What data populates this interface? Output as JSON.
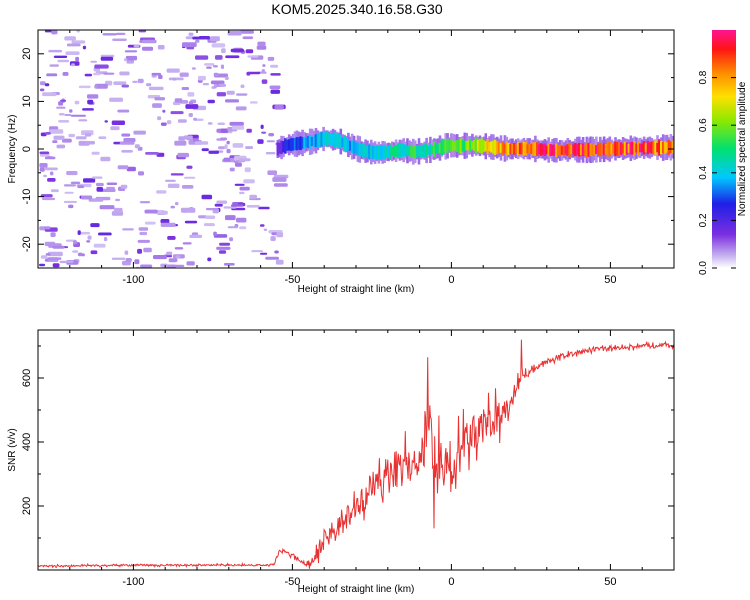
{
  "title": "KOM5.2025.340.16.58.G30",
  "chart_data": [
    {
      "type": "heatmap",
      "name": "spectrogram",
      "xlabel": "Height of straight line (km)",
      "ylabel": "Frequency (Hz)",
      "xlim": [
        -130,
        70
      ],
      "ylim": [
        -25,
        25
      ],
      "xticks": [
        -100,
        -50,
        0,
        50
      ],
      "yticks": [
        -20,
        -10,
        0,
        10,
        20
      ],
      "noise_region_x": [
        -130,
        -55
      ],
      "ridge": {
        "x": [
          -55,
          -52,
          -48,
          -44,
          -40,
          -36,
          -32,
          -28,
          -24,
          -20,
          -16,
          -12,
          -8,
          -4,
          -1,
          2,
          6,
          10,
          14,
          18,
          22,
          26,
          30,
          34,
          38,
          42,
          46,
          50,
          54,
          58,
          62,
          66,
          70
        ],
        "freq": [
          0.0,
          0.8,
          1.2,
          1.6,
          2.2,
          1.8,
          0.6,
          -0.4,
          -0.8,
          -0.6,
          -0.2,
          -0.6,
          -0.3,
          0.2,
          0.8,
          0.6,
          0.8,
          0.6,
          0.3,
          0.0,
          0.1,
          0.0,
          -0.2,
          -0.3,
          -0.1,
          -0.2,
          -0.1,
          0.0,
          0.1,
          0.2,
          0.3,
          0.3,
          0.4
        ],
        "amplitude": [
          0.1,
          0.3,
          0.32,
          0.35,
          0.4,
          0.38,
          0.36,
          0.4,
          0.42,
          0.44,
          0.45,
          0.5,
          0.48,
          0.5,
          0.55,
          0.55,
          0.6,
          0.7,
          0.8,
          0.82,
          0.85,
          0.9,
          0.92,
          0.88,
          0.9,
          0.92,
          0.9,
          0.88,
          0.86,
          0.9,
          0.85,
          0.8,
          0.75
        ]
      }
    },
    {
      "type": "colorbar",
      "name": "amplitude-colorbar",
      "label": "Normalized spectral amplitude",
      "range": [
        0,
        1
      ],
      "ticks": [
        "0.0",
        "0.2",
        "0.4",
        "0.6",
        "0.8"
      ],
      "tick_values": [
        0,
        0.2,
        0.4,
        0.6,
        0.8
      ]
    },
    {
      "type": "line",
      "name": "snr",
      "xlabel": "Height of straight line (km)",
      "ylabel": "SNR (v/v)",
      "xlim": [
        -130,
        70
      ],
      "ylim": [
        0,
        750
      ],
      "xticks": [
        -100,
        -50,
        0,
        50
      ],
      "yticks": [
        200,
        400,
        600
      ],
      "color": "#e83232",
      "series": [
        {
          "name": "SNR",
          "x": [
            -130,
            -110,
            -90,
            -70,
            -56,
            -54,
            -50,
            -45,
            -42,
            -40,
            -38,
            -35,
            -32,
            -30,
            -28,
            -25,
            -22,
            -20,
            -18,
            -15,
            -12,
            -10,
            -8,
            -7,
            -6,
            -5,
            -3,
            0,
            3,
            6,
            10,
            14,
            18,
            20,
            22,
            25,
            30,
            35,
            40,
            45,
            50,
            55,
            60,
            65,
            70
          ],
          "values": [
            12,
            14,
            15,
            15,
            15,
            60,
            45,
            15,
            60,
            90,
            120,
            140,
            170,
            200,
            220,
            270,
            260,
            300,
            320,
            330,
            340,
            350,
            370,
            450,
            380,
            360,
            340,
            300,
            380,
            420,
            440,
            470,
            500,
            560,
            600,
            620,
            650,
            670,
            680,
            690,
            690,
            695,
            700,
            705,
            700
          ],
          "noise_amp": [
            5,
            5,
            5,
            5,
            5,
            10,
            12,
            12,
            50,
            60,
            60,
            70,
            80,
            80,
            80,
            80,
            90,
            90,
            100,
            110,
            120,
            140,
            150,
            180,
            150,
            150,
            140,
            120,
            130,
            120,
            110,
            100,
            70,
            50,
            35,
            20,
            15,
            12,
            12,
            12,
            12,
            12,
            12,
            12,
            12
          ]
        }
      ],
      "spikes": [
        {
          "x": -7.5,
          "value": 665
        },
        {
          "x": -5.5,
          "value": 130
        },
        {
          "x": 22,
          "value": 720
        }
      ]
    }
  ]
}
